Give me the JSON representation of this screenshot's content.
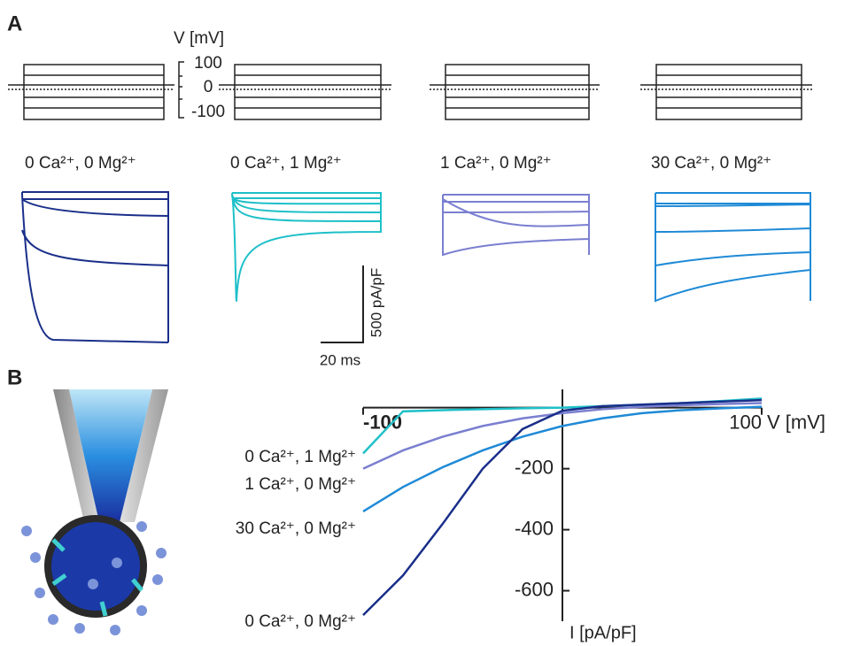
{
  "panel_a": {
    "label": "A",
    "voltage_label": "V [mV]",
    "voltage_ticks": [
      100,
      0,
      -100
    ],
    "conditions": [
      "0 Ca²⁺, 0 Mg²⁺",
      "0 Ca²⁺, 1 Mg²⁺",
      "1 Ca²⁺, 0 Mg²⁺",
      "30 Ca²⁺, 0 Mg²⁺"
    ],
    "scale_bar_y": "500 pA/pF",
    "scale_bar_x": "20 ms"
  },
  "panel_b": {
    "label": "B"
  },
  "chart_data": {
    "type": "line",
    "x": [
      -100,
      -80,
      -60,
      -40,
      -20,
      0,
      20,
      40,
      60,
      80,
      100
    ],
    "series": [
      {
        "name": "0 Ca²⁺, 1 Mg²⁺",
        "color": "#1ec0c8",
        "values": [
          -150,
          -12,
          -8,
          -5,
          -2,
          0,
          5,
          10,
          15,
          22,
          30
        ]
      },
      {
        "name": "1 Ca²⁺, 0 Mg²⁺",
        "color": "#7a7fd0",
        "values": [
          -200,
          -140,
          -95,
          -60,
          -35,
          -18,
          -5,
          3,
          8,
          12,
          15
        ]
      },
      {
        "name": "30 Ca²⁺, 0 Mg²⁺",
        "color": "#1f8ad6",
        "values": [
          -340,
          -260,
          -195,
          -140,
          -95,
          -60,
          -35,
          -18,
          -8,
          -2,
          3
        ]
      },
      {
        "name": "0 Ca²⁺, 0 Mg²⁺",
        "color": "#1a2f8a",
        "values": [
          -680,
          -550,
          -380,
          -200,
          -70,
          -10,
          5,
          10,
          15,
          20,
          25
        ]
      }
    ],
    "xlim": [
      -100,
      100
    ],
    "ylim": [
      -700,
      60
    ],
    "xticks": [
      -100,
      100
    ],
    "yticks": [
      -200,
      -400,
      -600
    ],
    "xlabel": "V [mV]",
    "ylabel": "I [pA/pF]"
  }
}
